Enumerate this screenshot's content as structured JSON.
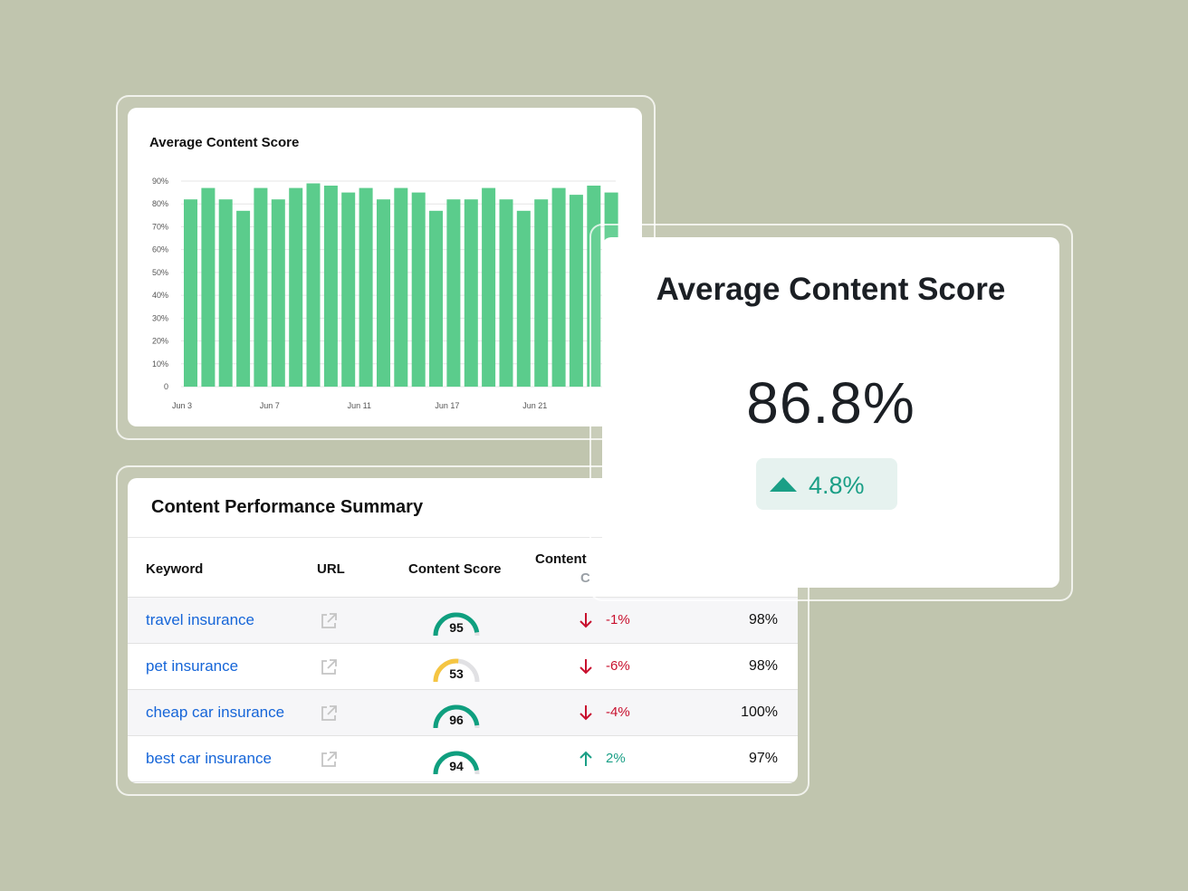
{
  "chart_card": {
    "title": "Average Content Score"
  },
  "chart_data": {
    "type": "bar",
    "title": "Average Content Score",
    "xlabel": "",
    "ylabel": "",
    "ylim": [
      0,
      90
    ],
    "y_ticks": [
      "0",
      "10%",
      "20%",
      "30%",
      "40%",
      "50%",
      "60%",
      "70%",
      "80%",
      "90%"
    ],
    "x_tick_labels": [
      "Jun 3",
      "Jun 7",
      "Jun 11",
      "Jun 17",
      "Jun 21"
    ],
    "grid": true,
    "color": "#5bcc8c",
    "values": [
      82,
      87,
      82,
      77,
      87,
      82,
      87,
      89,
      88,
      85,
      87,
      82,
      87,
      85,
      77,
      82,
      82,
      87,
      82,
      77,
      82,
      87,
      84,
      88,
      85
    ]
  },
  "table_card": {
    "title": "Content Performance Summary",
    "headers": {
      "keyword": "Keyword",
      "url": "URL",
      "content_score": "Content Score",
      "content_change": "Content",
      "content_change_sub": "C"
    },
    "rows": [
      {
        "keyword": "travel insurance",
        "score": 95,
        "score_color": "#0f9f7f",
        "change": "-1%",
        "direction": "down",
        "pct": "98%"
      },
      {
        "keyword": "pet insurance",
        "score": 53,
        "score_color": "#f5c542",
        "change": "-6%",
        "direction": "down",
        "pct": "98%"
      },
      {
        "keyword": "cheap car insurance",
        "score": 96,
        "score_color": "#0f9f7f",
        "change": "-4%",
        "direction": "down",
        "pct": "100%"
      },
      {
        "keyword": "best car insurance",
        "score": 94,
        "score_color": "#0f9f7f",
        "change": "2%",
        "direction": "up",
        "pct": "97%"
      }
    ],
    "icons": {
      "url": "external-link-icon",
      "down": "arrow-down-icon",
      "up": "arrow-up-icon"
    }
  },
  "kpi_card": {
    "title": "Average Content Score",
    "value": "86.8%",
    "delta": "4.8%",
    "delta_icon": "triangle-up-icon",
    "delta_color": "#1a9f86"
  }
}
